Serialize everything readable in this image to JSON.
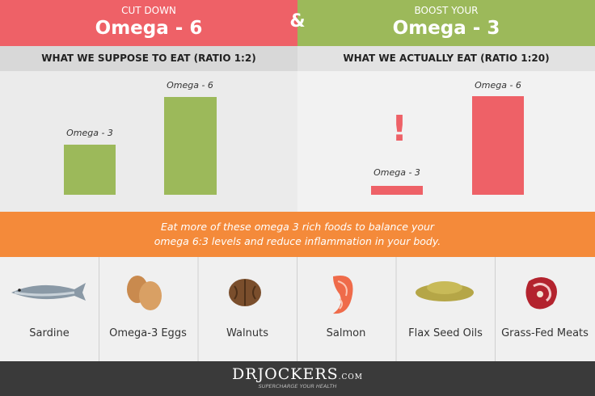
{
  "header": {
    "left": {
      "kicker": "CUT DOWN",
      "title": "Omega - 6"
    },
    "ampersand": "&",
    "right": {
      "kicker": "BOOST YOUR",
      "title": "Omega - 3"
    }
  },
  "panels": [
    {
      "heading": "WHAT WE SUPPOSE TO EAT (RATIO 1:2)",
      "bars": [
        {
          "label": "Omega - 3"
        },
        {
          "label": "Omega - 6"
        }
      ]
    },
    {
      "heading": "WHAT WE ACTUALLY EAT (RATIO 1:20)",
      "alert": "!",
      "bars": [
        {
          "label": "Omega - 3"
        },
        {
          "label": "Omega - 6"
        }
      ]
    }
  ],
  "banner": [
    "Eat more of these omega 3 rich foods to balance your",
    "omega 6:3 levels and reduce inflammation in your body."
  ],
  "foods": [
    "Sardine",
    "Omega-3 Eggs",
    "Walnuts",
    "Salmon",
    "Flax Seed Oils",
    "Grass-Fed Meats"
  ],
  "footer": {
    "logo": "DRJOCKERS",
    "logo_suffix": ".COM",
    "tagline": "SUPERCHARGE YOUR HEALTH"
  }
}
